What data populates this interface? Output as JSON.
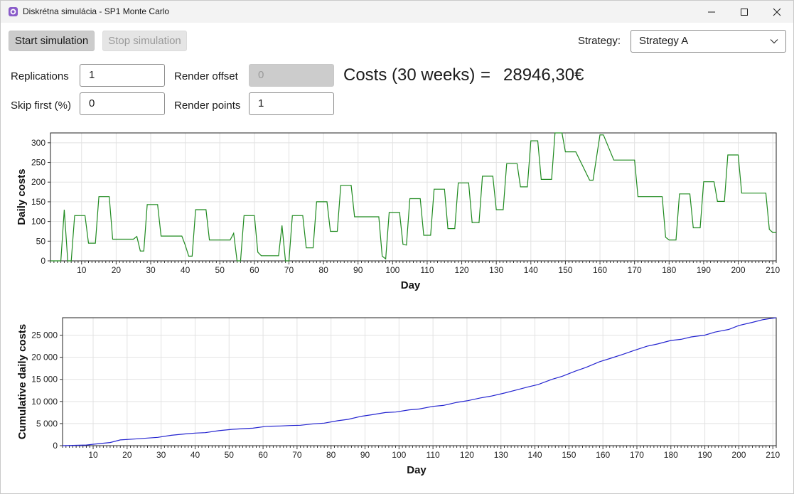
{
  "window": {
    "title": "Diskrétna simulácia - SP1 Monte Carlo"
  },
  "toolbar": {
    "start_label": "Start simulation",
    "stop_label": "Stop simulation"
  },
  "strategy": {
    "label": "Strategy:",
    "value": "Strategy A"
  },
  "params": {
    "replications_label": "Replications",
    "replications_value": "1",
    "skip_label": "Skip first (%)",
    "skip_value": "0",
    "render_offset_label": "Render offset",
    "render_offset_placeholder": "0",
    "render_points_label": "Render points",
    "render_points_value": "1"
  },
  "costs": {
    "label": "Costs (30 weeks)",
    "equals": "=",
    "value": "28946,30€"
  },
  "colors": {
    "daily_line": "#1f8a1f",
    "cumulative_line": "#2424d0",
    "grid": "#e2e2e2"
  },
  "chart_data": [
    {
      "type": "line",
      "xlabel": "Day",
      "ylabel": "Daily costs",
      "xlim": [
        1,
        211
      ],
      "ylim": [
        0,
        325
      ],
      "xticks": [
        10,
        20,
        30,
        40,
        50,
        60,
        70,
        80,
        90,
        100,
        110,
        120,
        130,
        140,
        150,
        160,
        170,
        180,
        190,
        200,
        210
      ],
      "yticks": [
        0,
        50,
        100,
        150,
        200,
        250,
        300
      ],
      "ytick_labels": [
        "0",
        "50",
        "100",
        "150",
        "200",
        "250",
        "300"
      ],
      "grid": true,
      "series": [
        {
          "x": [
            1,
            4,
            5,
            6,
            7,
            8,
            11,
            12,
            14,
            15,
            18,
            19,
            25,
            26,
            27,
            28,
            29,
            32,
            33,
            39,
            40,
            41,
            42,
            43,
            46,
            47,
            53,
            54,
            55,
            56,
            57,
            60,
            61,
            62,
            67,
            68,
            69,
            70,
            71,
            74,
            75,
            77,
            78,
            81,
            82,
            84,
            85,
            88,
            89,
            96,
            97,
            98,
            99,
            102,
            103,
            104,
            105,
            108,
            109,
            111,
            112,
            115,
            116,
            118,
            119,
            122,
            123,
            125,
            126,
            129,
            130,
            132,
            133,
            136,
            137,
            139,
            140,
            142,
            143,
            146,
            147,
            149,
            150,
            152,
            153,
            157,
            158,
            160,
            161,
            164,
            165,
            170,
            171,
            177,
            178,
            179,
            180,
            182,
            183,
            186,
            187,
            189,
            190,
            193,
            194,
            196,
            197,
            200,
            201,
            207,
            208,
            209,
            210,
            211
          ],
          "y": [
            0,
            0,
            130,
            0,
            0,
            115,
            115,
            45,
            45,
            163,
            163,
            55,
            55,
            62,
            25,
            25,
            143,
            143,
            63,
            63,
            40,
            12,
            12,
            130,
            130,
            53,
            53,
            70,
            0,
            0,
            115,
            115,
            22,
            13,
            13,
            90,
            0,
            0,
            115,
            115,
            33,
            33,
            150,
            150,
            75,
            75,
            192,
            192,
            112,
            112,
            12,
            5,
            123,
            123,
            42,
            40,
            158,
            158,
            65,
            65,
            182,
            182,
            82,
            82,
            198,
            198,
            97,
            97,
            215,
            215,
            130,
            130,
            247,
            247,
            188,
            188,
            305,
            305,
            207,
            207,
            325,
            325,
            277,
            277,
            277,
            205,
            205,
            320,
            320,
            256,
            256,
            256,
            163,
            163,
            163,
            60,
            53,
            53,
            170,
            170,
            84,
            84,
            201,
            201,
            151,
            151,
            269,
            269,
            172,
            172,
            172,
            80,
            72,
            72
          ]
        }
      ]
    },
    {
      "type": "line",
      "xlabel": "Day",
      "ylabel": "Cumulative daily costs",
      "xlim": [
        1,
        211
      ],
      "ylim": [
        0,
        28946.3
      ],
      "xticks": [
        10,
        20,
        30,
        40,
        50,
        60,
        70,
        80,
        90,
        100,
        110,
        120,
        130,
        140,
        150,
        160,
        170,
        180,
        190,
        200,
        210
      ],
      "yticks": [
        0,
        5000,
        10000,
        15000,
        20000,
        25000
      ],
      "ytick_labels": [
        "0",
        "5 000",
        "10 000",
        "15 000",
        "20 000",
        "25 000"
      ],
      "grid": true,
      "series": [
        {
          "x": [
            1,
            5,
            8,
            12,
            15,
            18,
            22,
            26,
            29,
            33,
            37,
            40,
            43,
            47,
            51,
            54,
            57,
            61,
            65,
            68,
            71,
            75,
            78,
            82,
            85,
            89,
            92,
            96,
            99,
            103,
            106,
            110,
            113,
            117,
            120,
            124,
            127,
            131,
            134,
            138,
            141,
            145,
            148,
            152,
            155,
            159,
            162,
            166,
            169,
            173,
            176,
            180,
            183,
            186,
            190,
            193,
            197,
            200,
            204,
            207,
            210,
            211
          ],
          "y": [
            0,
            80,
            150,
            480,
            700,
            1300,
            1500,
            1720,
            1880,
            2350,
            2650,
            2850,
            2950,
            3400,
            3700,
            3850,
            3950,
            4380,
            4450,
            4550,
            4620,
            4950,
            5100,
            5650,
            5950,
            6650,
            7000,
            7500,
            7600,
            8100,
            8300,
            8900,
            9100,
            9800,
            10150,
            10800,
            11200,
            11900,
            12500,
            13300,
            13850,
            15000,
            15700,
            16900,
            17700,
            19000,
            19700,
            20700,
            21500,
            22500,
            23000,
            23800,
            24050,
            24600,
            25000,
            25700,
            26300,
            27200,
            27900,
            28500,
            28850,
            28946.3
          ]
        }
      ]
    }
  ]
}
